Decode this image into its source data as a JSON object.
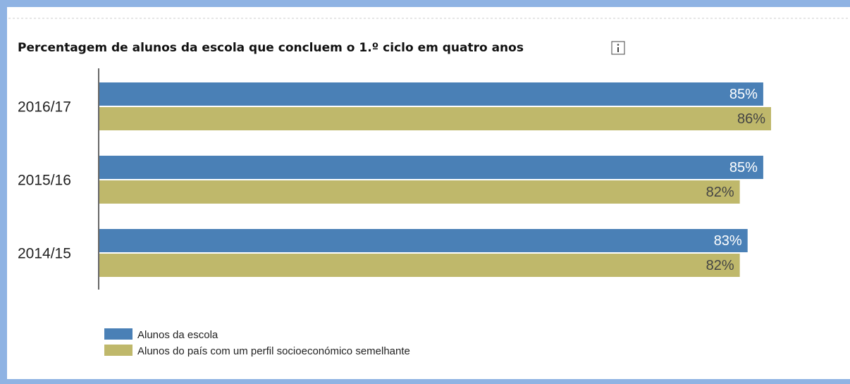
{
  "chart_data": {
    "type": "hbar",
    "title": "Percentagem de alunos da escola que concluem o 1.º ciclo em quatro anos",
    "categories": [
      "2016/17",
      "2015/16",
      "2014/15"
    ],
    "series": [
      {
        "name": "Alunos da escola",
        "color": "#4a80b6",
        "values": [
          85,
          85,
          83
        ],
        "value_labels": [
          "85%",
          "85%",
          "83%"
        ]
      },
      {
        "name": "Alunos do país com um perfil socioeconómico semelhante",
        "color": "#bfb86b",
        "values": [
          86,
          82,
          82
        ],
        "value_labels": [
          "86%",
          "82%",
          "82%"
        ]
      }
    ],
    "legend": "bottom-left"
  }
}
